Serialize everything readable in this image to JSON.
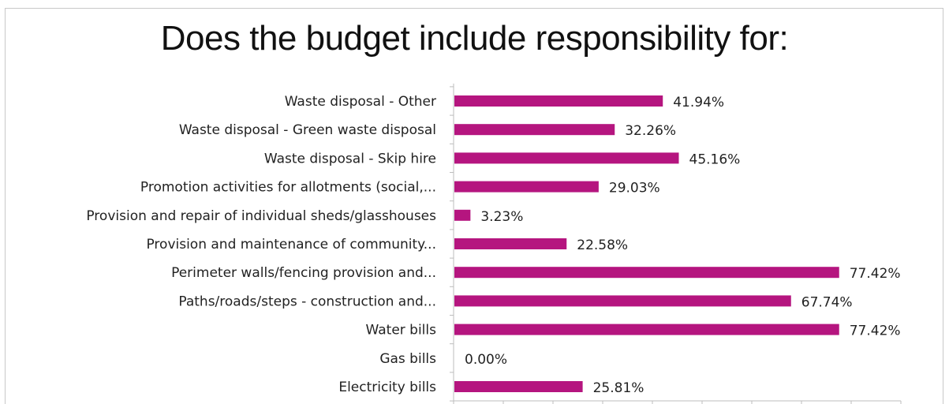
{
  "chart_data": {
    "type": "bar",
    "orientation": "horizontal",
    "title": "Does the budget include responsibility for:",
    "categories": [
      "Waste disposal - Other",
      "Waste disposal - Green waste disposal",
      "Waste disposal - Skip hire",
      "Promotion activities for allotments (social,...",
      "Provision and repair of individual sheds/glasshouses",
      "Provision and maintenance of community...",
      "Perimeter walls/fencing provision and...",
      "Paths/roads/steps - construction and...",
      "Water bills",
      "Gas bills",
      "Electricity bills"
    ],
    "values": [
      41.94,
      32.26,
      45.16,
      29.03,
      3.23,
      22.58,
      77.42,
      67.74,
      77.42,
      0.0,
      25.81
    ],
    "value_labels": [
      "41.94%",
      "32.26%",
      "45.16%",
      "29.03%",
      "3.23%",
      "22.58%",
      "77.42%",
      "67.74%",
      "77.42%",
      "0.00%",
      "25.81%"
    ],
    "xlim": [
      0,
      90
    ],
    "bar_color": "#b5157f",
    "grid": false,
    "legend": "none"
  }
}
